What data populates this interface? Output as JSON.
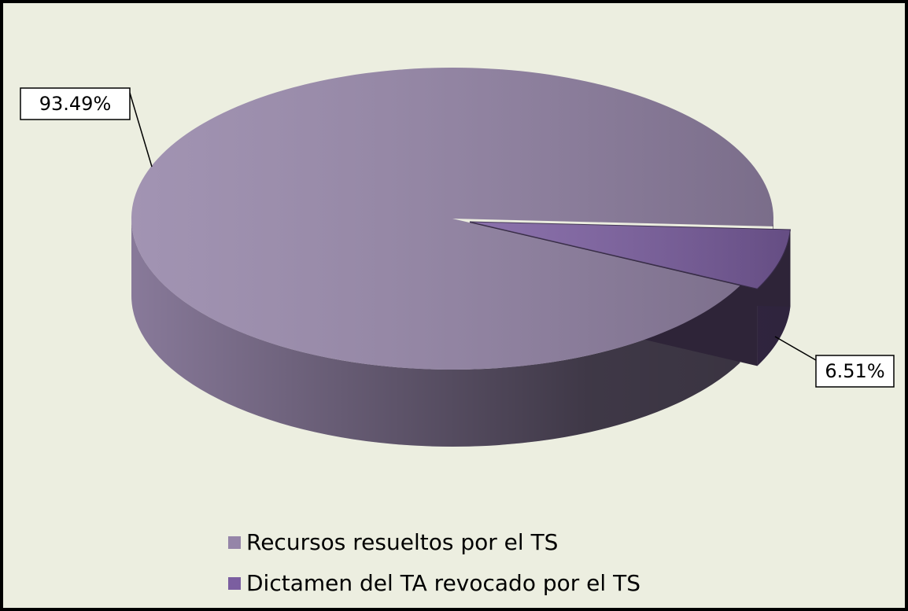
{
  "chart_data": {
    "type": "pie",
    "categories": [
      "Recursos resueltos por el TS",
      "Dictamen del TA revocado por el TS"
    ],
    "values": [
      93.49,
      6.51
    ],
    "value_labels": [
      "93.49%",
      "6.51%"
    ],
    "colors": [
      "#9585a8",
      "#7b5ea0"
    ],
    "legend": "bottom"
  }
}
